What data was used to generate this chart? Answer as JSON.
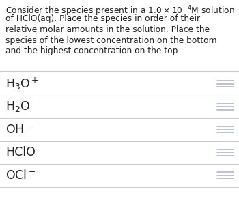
{
  "title_lines": [
    [
      "Consider the species present in a 1.0",
      "×10",
      "⁻⁴",
      "M solution"
    ],
    [
      "of HClO(aq). Place the species in order of their"
    ],
    [
      "relative molar amounts in the solution. Place the"
    ],
    [
      "species of the lowest concentration on the bottom"
    ],
    [
      "and the highest concentration on the top."
    ]
  ],
  "title_line1_math": "Consider the species present in a $1.0\\times10^{-4}$M solution",
  "title_line2": "of HClO(aq). Place the species in order of their",
  "title_line3": "relative molar amounts in the solution. Place the",
  "title_line4": "species of the lowest concentration on the bottom",
  "title_line5": "and the highest concentration on the top.",
  "species": [
    "H$_3$O$^+$",
    "H$_2$O",
    "OH$^-$",
    "HClO",
    "OCl$^-$"
  ],
  "bg_color": "#ffffff",
  "text_color": "#222222",
  "line_color": "#cccccc",
  "drag_color": "#b0b8c8",
  "title_fontsize": 8.8,
  "species_fontsize": 12.5,
  "fig_width": 3.5,
  "fig_height": 3.09,
  "dpi": 100
}
